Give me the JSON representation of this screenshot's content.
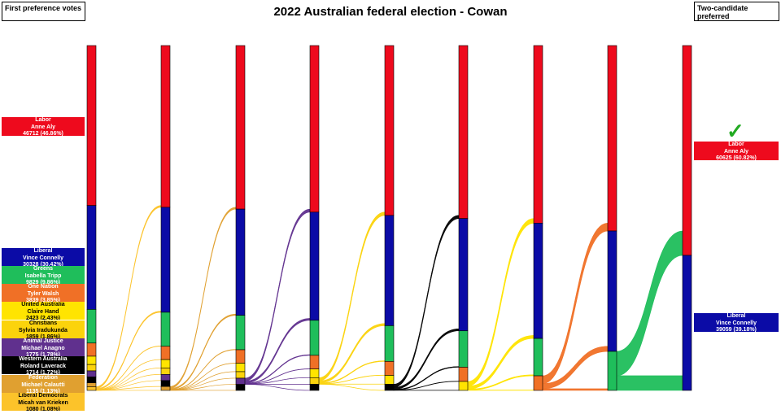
{
  "title": "2022 Australian federal election - Cowan",
  "left_box": "First preference votes",
  "right_box": "Two-candidate preferred",
  "winner_mark": "✓",
  "chart_data": {
    "type": "sankey",
    "title": "2022 Australian federal election - Cowan",
    "candidates": [
      {
        "party": "Labor",
        "name": "Anne Aly",
        "label": "46712 (46.86%)",
        "votes": 46712,
        "pct": 46.86,
        "color": "#ee0a1d",
        "text": "#ffffff"
      },
      {
        "party": "Liberal",
        "name": "Vince Connelly",
        "label": "30328 (30.42%)",
        "votes": 30328,
        "pct": 30.42,
        "color": "#0b0ba6",
        "text": "#ffffff"
      },
      {
        "party": "Greens",
        "name": "Isabella Tripp",
        "label": "9829 (9.86%)",
        "votes": 9829,
        "pct": 9.86,
        "color": "#1fbe5b",
        "text": "#ffffff"
      },
      {
        "party": "One Nation",
        "name": "Tyler Walsh",
        "label": "3839 (3.85%)",
        "votes": 3839,
        "pct": 3.85,
        "color": "#f07026",
        "text": "#ffffff"
      },
      {
        "party": "United Australia",
        "name": "Claire Hand",
        "label": "2423 (2.43%)",
        "votes": 2423,
        "pct": 2.43,
        "color": "#ffe400",
        "text": "#000000"
      },
      {
        "party": "Christians",
        "name": "Sylvia Iradukunda",
        "label": "1859 (1.86%)",
        "votes": 1859,
        "pct": 1.86,
        "color": "#fbd30c",
        "text": "#000000"
      },
      {
        "party": "Animal Justice",
        "name": "Michael Anagno",
        "label": "1775 (1.78%)",
        "votes": 1775,
        "pct": 1.78,
        "color": "#60308e",
        "text": "#ffffff"
      },
      {
        "party": "Western Australia",
        "name": "Roland Laverack",
        "label": "1714 (1.72%)",
        "votes": 1714,
        "pct": 1.72,
        "color": "#000000",
        "text": "#ffffff"
      },
      {
        "party": "Federation",
        "name": "Michael Calautti",
        "label": "1135 (1.13%)",
        "votes": 1135,
        "pct": 1.13,
        "color": "#e0a030",
        "text": "#ffffff"
      },
      {
        "party": "Liberal Democrats",
        "name": "Micah van Krieken",
        "label": "1080 (1.08%)",
        "votes": 1080,
        "pct": 1.08,
        "color": "#fcc32a",
        "text": "#000000"
      }
    ],
    "exclusion_order": [
      "Liberal Democrats",
      "Federation",
      "Animal Justice",
      "Christians",
      "Western Australia",
      "United Australia",
      "One Nation",
      "Greens"
    ],
    "final": [
      {
        "party": "Labor",
        "name": "Anne Aly",
        "label": "60625 (60.82%)",
        "votes": 60625,
        "pct": 60.82,
        "color": "#ee0a1d",
        "text": "#ffffff",
        "winner": true
      },
      {
        "party": "Liberal",
        "name": "Vince Connelly",
        "label": "39059 (39.18%)",
        "votes": 39059,
        "pct": 39.18,
        "color": "#0b0ba6",
        "text": "#ffffff",
        "winner": false
      }
    ]
  }
}
